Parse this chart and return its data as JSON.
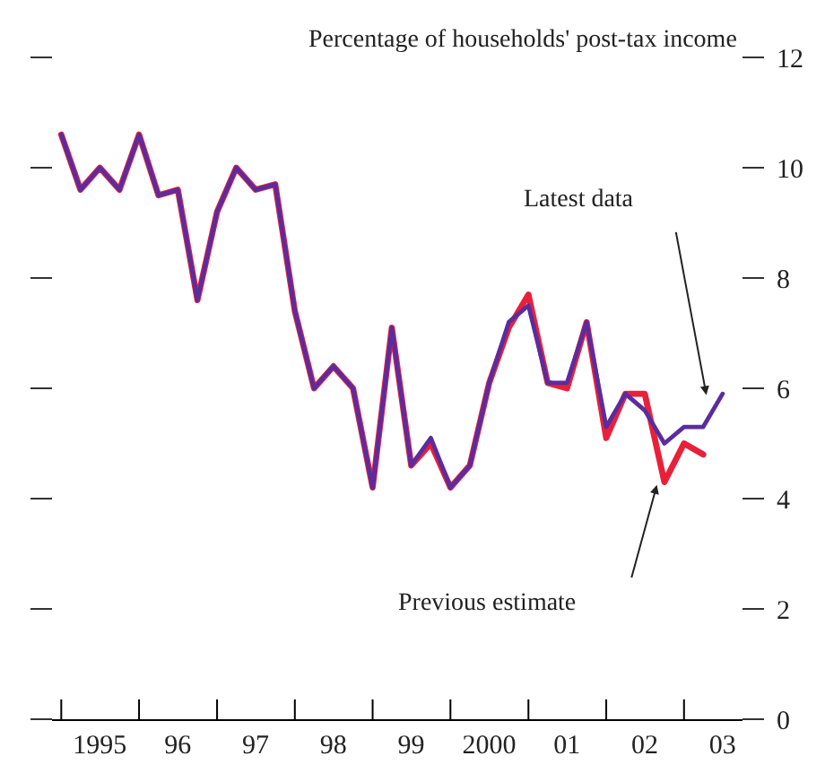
{
  "chart_data": {
    "type": "line",
    "ylabel": "Percentage of households' post-tax income",
    "x": [
      "1995-01",
      "1995-04",
      "1995-07",
      "1995-10",
      "1996-01",
      "1996-04",
      "1996-07",
      "1996-10",
      "1997-01",
      "1997-04",
      "1997-07",
      "1997-10",
      "1998-01",
      "1998-04",
      "1998-07",
      "1998-10",
      "1999-01",
      "1999-04",
      "1999-07",
      "1999-10",
      "2000-01",
      "2000-04",
      "2000-07",
      "2000-10",
      "2001-01",
      "2001-04",
      "2001-07",
      "2001-10",
      "2002-01",
      "2002-04",
      "2002-07",
      "2002-10",
      "2003-01",
      "2003-04",
      "2003-07"
    ],
    "series": [
      {
        "color": "#e8203a",
        "values": [
          10.6,
          9.6,
          10.0,
          9.6,
          10.6,
          9.5,
          9.6,
          7.6,
          9.2,
          10.0,
          9.6,
          9.7,
          7.4,
          6.0,
          6.4,
          6.0,
          4.2,
          7.1,
          4.6,
          5.0,
          4.2,
          4.6,
          6.1,
          7.1,
          7.7,
          6.1,
          6.0,
          7.2,
          5.1,
          5.9,
          5.9,
          4.3,
          5.0,
          4.8,
          null
        ]
      },
      {
        "color": "#5b2c9e",
        "values": [
          10.6,
          9.6,
          10.0,
          9.6,
          10.6,
          9.5,
          9.6,
          7.6,
          9.2,
          10.0,
          9.6,
          9.7,
          7.4,
          6.0,
          6.4,
          6.0,
          4.2,
          7.1,
          4.6,
          5.1,
          4.2,
          4.6,
          6.1,
          7.2,
          7.5,
          6.1,
          6.1,
          7.2,
          5.3,
          5.9,
          5.6,
          5.0,
          5.3,
          5.3,
          5.9
        ]
      }
    ],
    "xlim": [
      "1994-11-27",
      "2003-09-24"
    ],
    "xticks": [
      {
        "value": "1995-01",
        "label": null
      },
      {
        "value": "1995-07",
        "label": "1995"
      },
      {
        "value": "1996-01",
        "label": null
      },
      {
        "value": "1996-07",
        "label": "96"
      },
      {
        "value": "1997-01",
        "label": null
      },
      {
        "value": "1997-07",
        "label": "97"
      },
      {
        "value": "1998-01",
        "label": null
      },
      {
        "value": "1998-07",
        "label": "98"
      },
      {
        "value": "1999-01",
        "label": null
      },
      {
        "value": "1999-07",
        "label": "99"
      },
      {
        "value": "2000-01",
        "label": null
      },
      {
        "value": "2000-07",
        "label": "2000"
      },
      {
        "value": "2001-01",
        "label": null
      },
      {
        "value": "2001-07",
        "label": "01"
      },
      {
        "value": "2002-01",
        "label": null
      },
      {
        "value": "2002-07",
        "label": "02"
      },
      {
        "value": "2003-01",
        "label": null
      },
      {
        "value": "2003-07",
        "label": "03"
      }
    ],
    "ylim": [
      0,
      12
    ],
    "yticks": [
      0,
      2,
      4,
      6,
      8,
      10,
      12
    ],
    "annotations": [
      "Latest data",
      "Previous estimate"
    ],
    "marker": "none",
    "line_style": "solid"
  }
}
